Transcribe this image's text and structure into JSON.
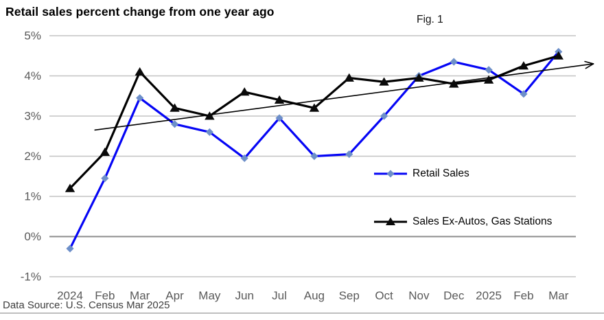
{
  "header": {
    "title": "Retail sales percent change from one year ago",
    "fig_label": "Fig. 1"
  },
  "footer": {
    "source": "Data Source: U.S. Census Mar 2025"
  },
  "colors": {
    "retail_line": "#0505f5",
    "retail_marker": "#6d8fc9",
    "ex_autos_line": "#000000",
    "ex_autos_marker": "#0a0a0a",
    "trend_line": "#000000",
    "grid": "#c3c3c3",
    "zero_line": "#8c8c8c",
    "axis_text": "#595959"
  },
  "chart_data": {
    "type": "line",
    "title": "Retail sales percent change from one year ago",
    "x": [
      "2024",
      "Feb",
      "Mar",
      "Apr",
      "May",
      "Jun",
      "Jul",
      "Aug",
      "Sep",
      "Oct",
      "Nov",
      "Dec",
      "2025",
      "Feb",
      "Mar"
    ],
    "series": [
      {
        "name": "Retail Sales",
        "marker": "diamond",
        "values": [
          -0.3,
          1.45,
          3.45,
          2.8,
          2.6,
          1.95,
          2.95,
          2.0,
          2.05,
          3.0,
          4.0,
          4.35,
          4.15,
          3.55,
          4.6
        ]
      },
      {
        "name": "Sales Ex-Autos, Gas Stations",
        "marker": "triangle",
        "values": [
          1.2,
          2.1,
          4.1,
          3.2,
          3.0,
          3.6,
          3.4,
          3.2,
          3.95,
          3.85,
          3.95,
          3.8,
          3.9,
          4.25,
          4.5
        ]
      }
    ],
    "trendline": {
      "from": [
        0.7,
        2.65
      ],
      "to": [
        15.0,
        4.3
      ],
      "arrow": true
    },
    "y_ticks": [
      "5%",
      "4%",
      "3%",
      "2%",
      "1%",
      "0%",
      "-1%"
    ],
    "ylim": [
      -1,
      5
    ],
    "grid": true,
    "legend_position": "inside-right"
  }
}
